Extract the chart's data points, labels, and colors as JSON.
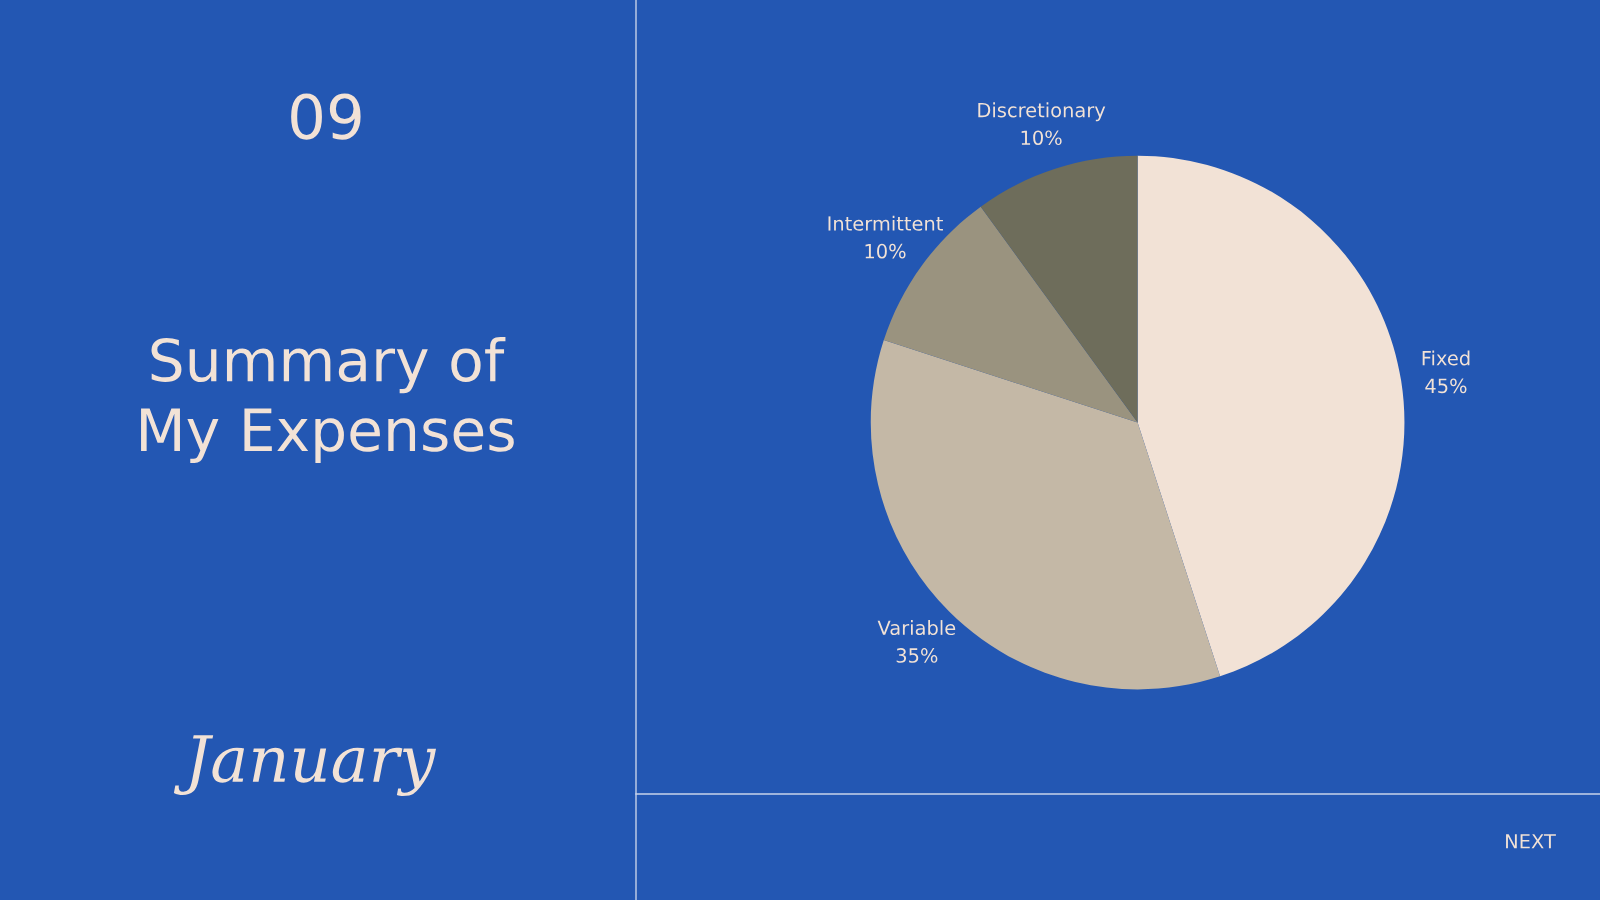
{
  "chart_data": {
    "type": "pie",
    "title": "Summary of\nMy Expenses",
    "categories": [
      "Fixed",
      "Variable",
      "Intermittent",
      "Discretionary"
    ],
    "values": [
      45,
      35,
      10,
      10
    ],
    "value_labels": [
      "45%",
      "35%",
      "10%",
      "10%"
    ],
    "colors": [
      "#f2e2d6",
      "#c4b8a6",
      "#9a937f",
      "#6e6d5b"
    ],
    "annotations": [
      "09",
      "January",
      "NEXT"
    ]
  }
}
